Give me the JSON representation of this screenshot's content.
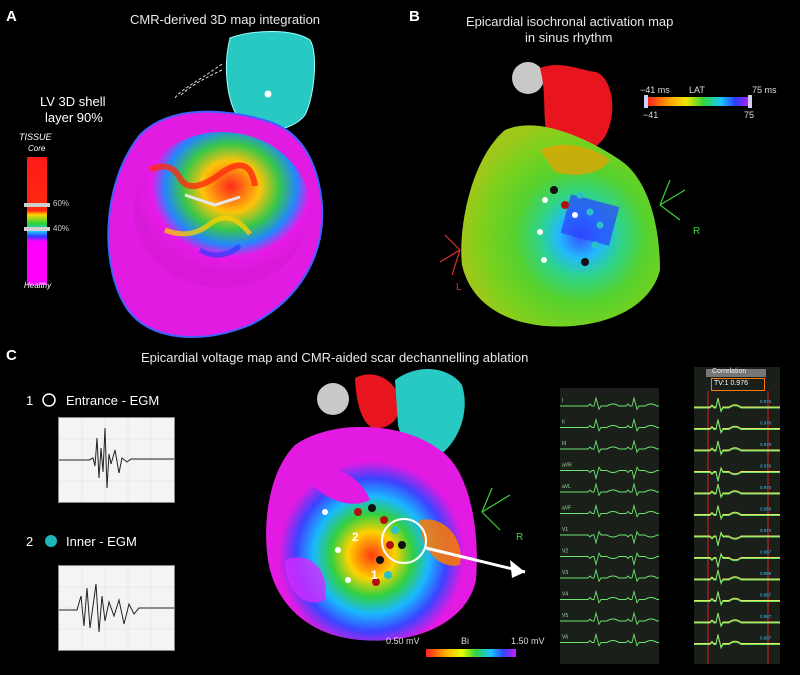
{
  "panels": {
    "a": {
      "letter": "A",
      "title": "CMR-derived 3D map integration",
      "shell_label_line1": "LV 3D shell",
      "shell_label_line2": "layer 90%",
      "tissue_title": "TISSUE",
      "core": "Core",
      "healthy": "Healthy",
      "pct60": "60%",
      "pct40": "40%"
    },
    "b": {
      "letter": "B",
      "title_line1": "Epicardial isochronal activation map",
      "title_line2": "in sinus rhythm",
      "lat_min": "−41 ms",
      "lat_label": "LAT",
      "lat_max": "75 ms",
      "lat_min_val": "−41",
      "lat_max_val": "75",
      "axis_r": "R",
      "axis_l": "L"
    },
    "c": {
      "letter": "C",
      "title": "Epicardial voltage map and CMR-aided scar dechannelling ablation",
      "entrance_num": "1",
      "entrance_label": "Entrance - EGM",
      "inner_num": "2",
      "inner_label": "Inner - EGM",
      "volt_min": "0.50 mV",
      "volt_label": "Bi",
      "volt_max": "1.50 mV",
      "axis_r": "R",
      "marker_1": "1",
      "marker_2": "2",
      "correlation_title": "Correlation",
      "correlation_value": "TV:1  0.976",
      "leads": [
        "I",
        "II",
        "III",
        "aVR",
        "aVL",
        "aVF",
        "V1",
        "V2",
        "V3",
        "V4",
        "V5",
        "V6"
      ],
      "corr_values": [
        "0.976",
        "0.976",
        "0.970",
        "0.976",
        "0.970",
        "0.956",
        "0.972",
        "0.987",
        "0.995",
        "0.987",
        "0.987",
        "0.987"
      ]
    }
  }
}
